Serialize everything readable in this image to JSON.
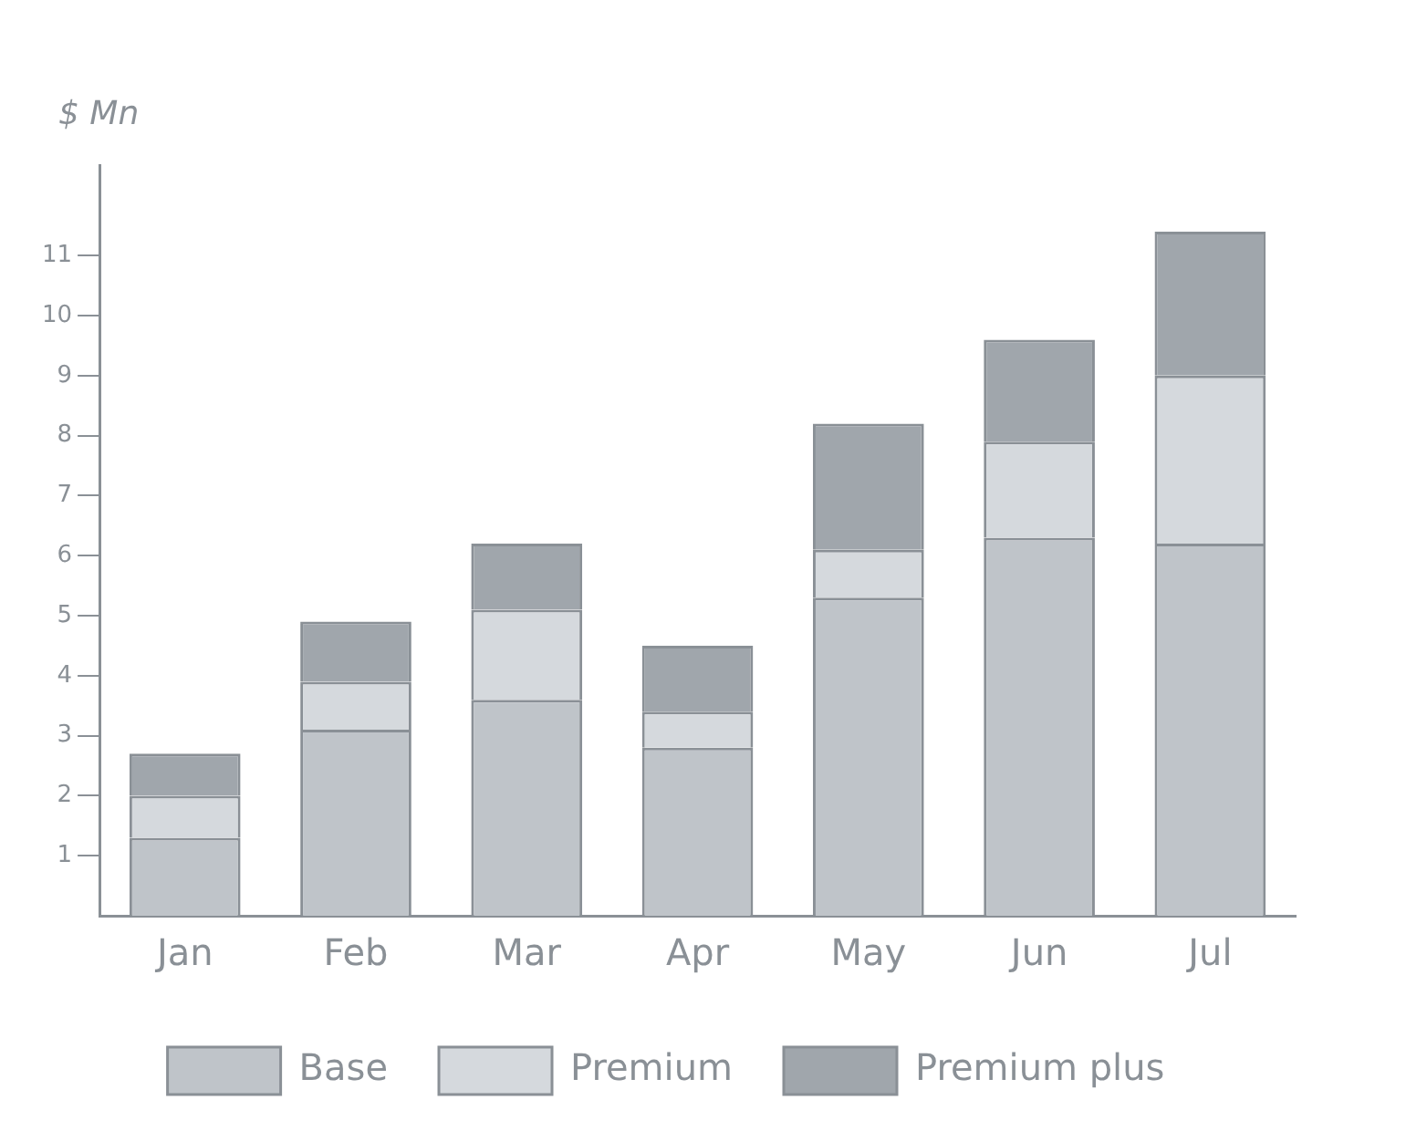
{
  "chart_data": {
    "type": "bar",
    "stacked": true,
    "ylabel": "$ Mn",
    "categories": [
      "Jan",
      "Feb",
      "Mar",
      "Apr",
      "May",
      "Jun",
      "Jul"
    ],
    "series": [
      {
        "name": "Base",
        "color": "#bfc4c9",
        "values": [
          1.3,
          3.1,
          3.6,
          2.8,
          5.3,
          6.3,
          6.2
        ]
      },
      {
        "name": "Premium",
        "color": "#d5d9dd",
        "values": [
          0.7,
          0.8,
          1.5,
          0.6,
          0.8,
          1.6,
          2.8
        ]
      },
      {
        "name": "Premium plus",
        "color": "#a0a6ac",
        "values": [
          0.7,
          1.0,
          1.1,
          1.1,
          2.1,
          1.7,
          2.4
        ]
      }
    ],
    "ylim": [
      0,
      12.5
    ],
    "yticks": [
      1,
      2,
      3,
      4,
      5,
      6,
      7,
      8,
      9,
      10,
      11
    ],
    "grid": false,
    "legend": "bottom"
  }
}
